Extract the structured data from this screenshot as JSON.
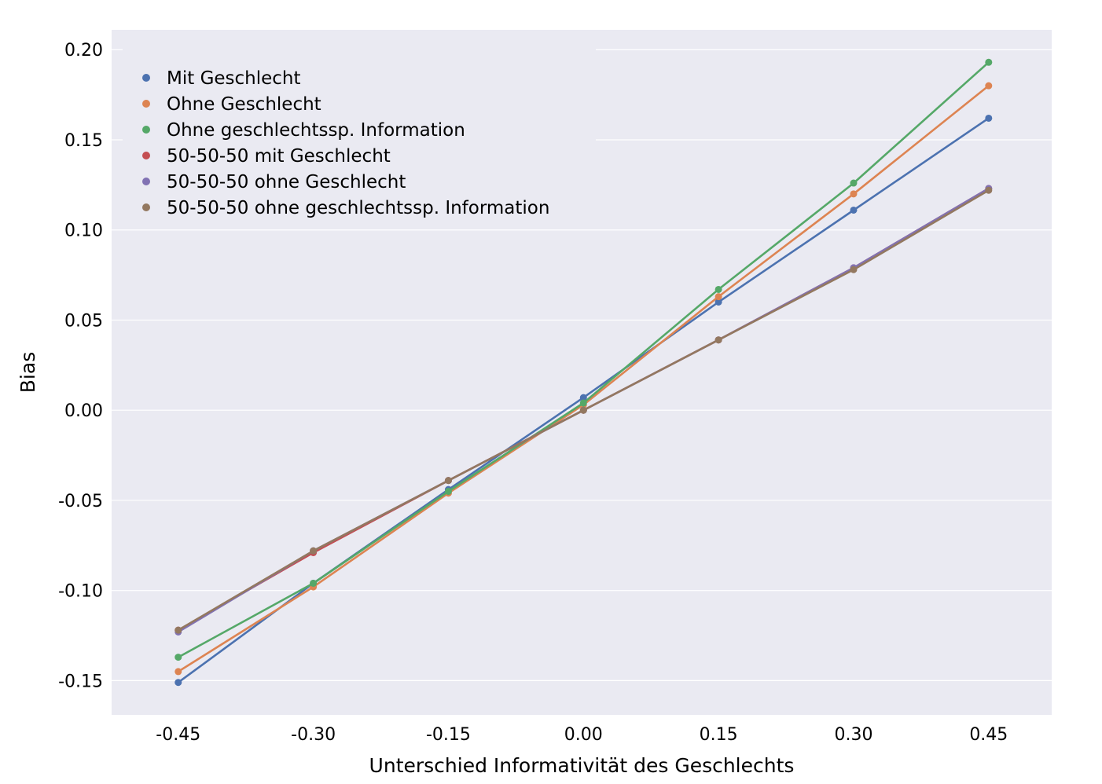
{
  "chart_data": {
    "type": "line",
    "title": "",
    "xlabel": "Unterschied Informativität des Geschlechts",
    "ylabel": "Bias",
    "x": [
      -0.45,
      -0.3,
      -0.15,
      0.0,
      0.15,
      0.3,
      0.45
    ],
    "x_tick_labels": [
      "-0.45",
      "-0.30",
      "-0.15",
      "0.00",
      "0.15",
      "0.30",
      "0.45"
    ],
    "y_ticks": [
      -0.15,
      -0.1,
      -0.05,
      0.0,
      0.05,
      0.1,
      0.15,
      0.2
    ],
    "y_tick_labels": [
      "-0.15",
      "-0.10",
      "-0.05",
      "0.00",
      "0.05",
      "0.10",
      "0.15",
      "0.20"
    ],
    "xlim": [
      -0.524,
      0.52
    ],
    "ylim": [
      -0.169,
      0.211
    ],
    "grid": true,
    "legend_position": "top-left",
    "series": [
      {
        "name": "Mit Geschlecht",
        "color": "#4c72b0",
        "values": [
          -0.151,
          -0.096,
          -0.044,
          0.007,
          0.06,
          0.111,
          0.162
        ]
      },
      {
        "name": "Ohne Geschlecht",
        "color": "#dd8452",
        "values": [
          -0.145,
          -0.098,
          -0.046,
          0.003,
          0.063,
          0.12,
          0.18
        ]
      },
      {
        "name": "Ohne geschlechtssp. Information",
        "color": "#55a868",
        "values": [
          -0.137,
          -0.096,
          -0.045,
          0.004,
          0.067,
          0.126,
          0.193
        ]
      },
      {
        "name": "50-50-50 mit Geschlecht",
        "color": "#c44e52",
        "values": [
          -0.122,
          -0.079,
          -0.039,
          0.0,
          0.039,
          0.079,
          0.123
        ]
      },
      {
        "name": "50-50-50 ohne Geschlecht",
        "color": "#8172b3",
        "values": [
          -0.123,
          -0.078,
          -0.039,
          0.0,
          0.039,
          0.079,
          0.123
        ]
      },
      {
        "name": "50-50-50 ohne geschlechtssp. Information",
        "color": "#937860",
        "values": [
          -0.122,
          -0.078,
          -0.039,
          0.0,
          0.039,
          0.078,
          0.122
        ]
      }
    ],
    "colors": {
      "plot_background": "#eaeaf2",
      "grid": "#ffffff",
      "legend_background": "#eaeaf2"
    }
  }
}
